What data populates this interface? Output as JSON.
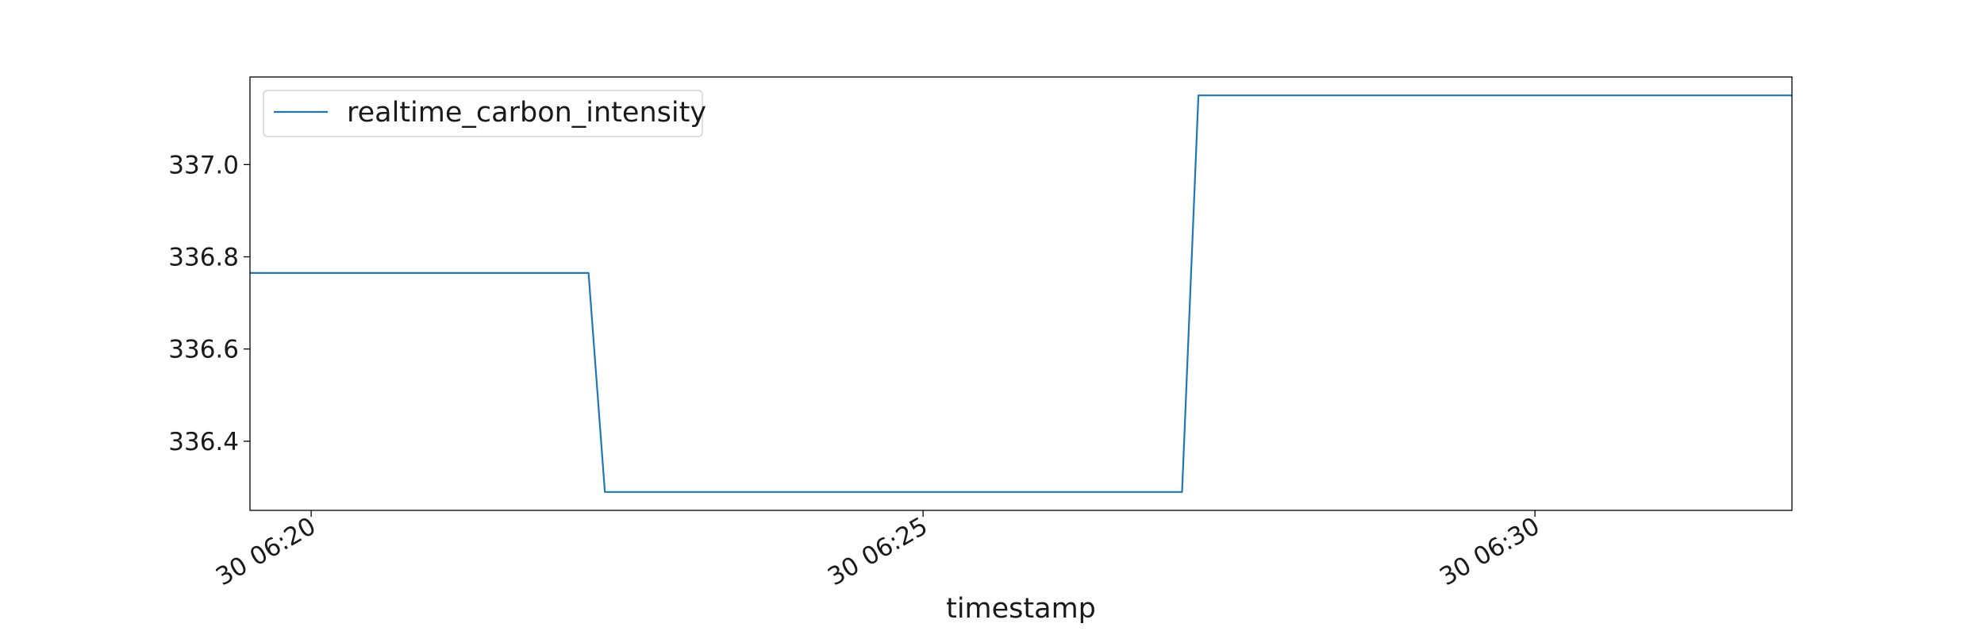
{
  "chart_data": {
    "type": "line",
    "title": "",
    "xlabel": "timestamp",
    "ylabel": "",
    "x_ticks": [
      "30 06:20",
      "30 06:25",
      "30 06:30"
    ],
    "y_ticks": [
      "336.4",
      "336.6",
      "336.8",
      "337.0"
    ],
    "xlim": [
      "06:19:30",
      "06:32:06"
    ],
    "ylim": [
      336.25,
      337.19
    ],
    "grid": false,
    "legend": "top-left",
    "series": [
      {
        "name": "realtime_carbon_intensity",
        "color": "#1f77b4",
        "x": [
          "06:19:30",
          "06:22:16",
          "06:22:24",
          "06:27:07",
          "06:27:15",
          "06:32:06"
        ],
        "y": [
          336.765,
          336.765,
          336.29,
          336.29,
          337.15,
          337.15
        ]
      }
    ]
  }
}
